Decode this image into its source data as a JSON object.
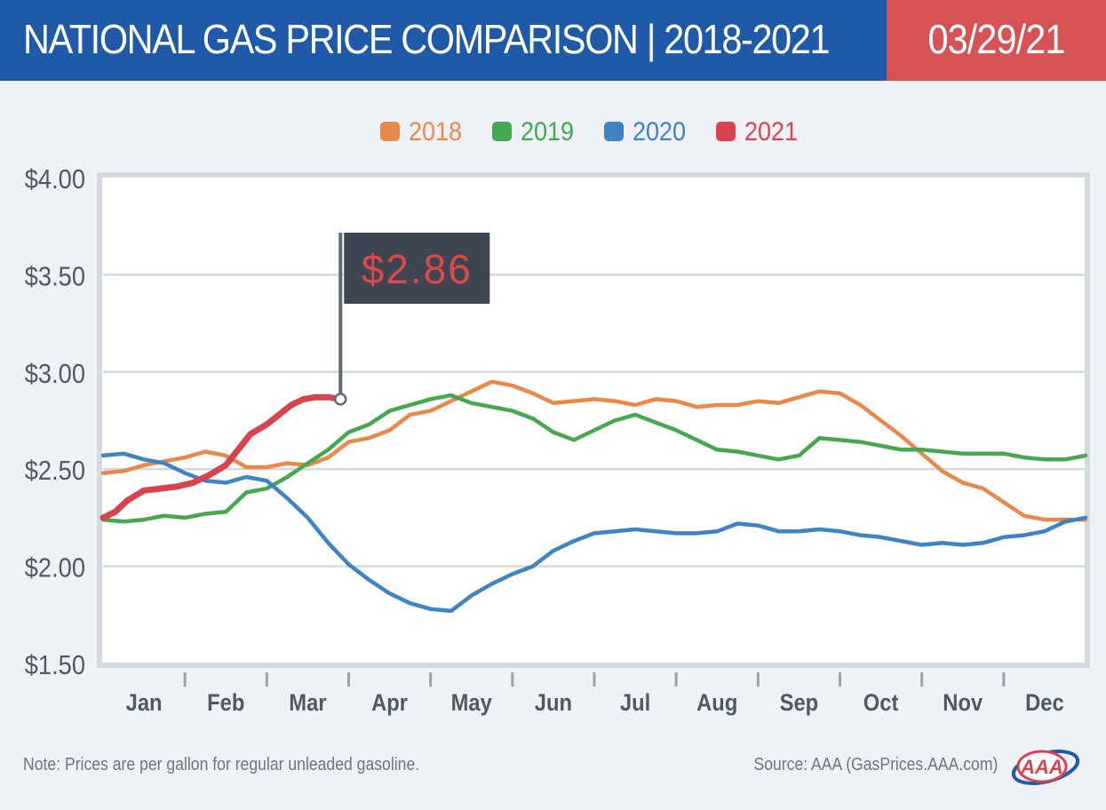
{
  "header": {
    "title": "NATIONAL GAS PRICE COMPARISON | 2018-2021",
    "date": "03/29/21"
  },
  "footer": {
    "note": "Note: Prices are per gallon for regular unleaded gasoline.",
    "source": "Source: AAA (GasPrices.AAA.com)",
    "logo_icon": "aaa-logo-icon",
    "logo_text": "AAA"
  },
  "colors": {
    "header_blue": "#1f5aa8",
    "header_red": "#d75252",
    "2018": "#e8894a",
    "2019": "#45a84f",
    "2020": "#3f83c3",
    "2021": "#d9434d",
    "callout_bg": "#3d4652",
    "callout_text": "#e04848"
  },
  "chart_data": {
    "type": "line",
    "title": "",
    "xlabel": "",
    "ylabel": "",
    "ylim": [
      1.5,
      4.0
    ],
    "xlim": [
      1,
      13
    ],
    "y_ticks": [
      1.5,
      2.0,
      2.5,
      3.0,
      3.5,
      4.0
    ],
    "y_tick_labels": [
      "$1.50",
      "$2.00",
      "$2.50",
      "$3.00",
      "$3.50",
      "$4.00"
    ],
    "categories": [
      "Jan",
      "Feb",
      "Mar",
      "Apr",
      "May",
      "Jun",
      "Jul",
      "Aug",
      "Sep",
      "Oct",
      "Nov",
      "Dec"
    ],
    "grid": true,
    "legend_position": "top-center",
    "annotation": {
      "label": "$2.86",
      "x": 3.9,
      "y": 2.86,
      "series": "2021"
    },
    "series": [
      {
        "name": "2018",
        "color": "#e8894a",
        "x": [
          1.0,
          1.25,
          1.5,
          1.75,
          2.0,
          2.25,
          2.5,
          2.75,
          3.0,
          3.25,
          3.5,
          3.75,
          4.0,
          4.25,
          4.5,
          4.75,
          5.0,
          5.25,
          5.5,
          5.75,
          6.0,
          6.25,
          6.5,
          6.75,
          7.0,
          7.25,
          7.5,
          7.75,
          8.0,
          8.25,
          8.5,
          8.75,
          9.0,
          9.25,
          9.5,
          9.75,
          10.0,
          10.25,
          10.5,
          10.75,
          11.0,
          11.25,
          11.5,
          11.75,
          12.0,
          12.25,
          12.5,
          12.75,
          13.0
        ],
        "y": [
          2.48,
          2.49,
          2.52,
          2.54,
          2.56,
          2.59,
          2.57,
          2.51,
          2.51,
          2.53,
          2.52,
          2.56,
          2.64,
          2.66,
          2.7,
          2.78,
          2.8,
          2.85,
          2.9,
          2.95,
          2.93,
          2.89,
          2.84,
          2.85,
          2.86,
          2.85,
          2.83,
          2.86,
          2.85,
          2.82,
          2.83,
          2.83,
          2.85,
          2.84,
          2.87,
          2.9,
          2.89,
          2.83,
          2.75,
          2.67,
          2.58,
          2.49,
          2.43,
          2.4,
          2.33,
          2.26,
          2.24,
          2.24,
          2.24
        ]
      },
      {
        "name": "2019",
        "color": "#45a84f",
        "x": [
          1.0,
          1.25,
          1.5,
          1.75,
          2.0,
          2.25,
          2.5,
          2.75,
          3.0,
          3.25,
          3.5,
          3.75,
          4.0,
          4.25,
          4.5,
          4.75,
          5.0,
          5.25,
          5.5,
          5.75,
          6.0,
          6.25,
          6.5,
          6.75,
          7.0,
          7.25,
          7.5,
          7.75,
          8.0,
          8.25,
          8.5,
          8.75,
          9.0,
          9.25,
          9.5,
          9.75,
          10.0,
          10.25,
          10.5,
          10.75,
          11.0,
          11.25,
          11.5,
          11.75,
          12.0,
          12.25,
          12.5,
          12.75,
          13.0
        ],
        "y": [
          2.24,
          2.23,
          2.24,
          2.26,
          2.25,
          2.27,
          2.28,
          2.38,
          2.4,
          2.46,
          2.53,
          2.6,
          2.69,
          2.73,
          2.8,
          2.83,
          2.86,
          2.88,
          2.84,
          2.82,
          2.8,
          2.76,
          2.69,
          2.65,
          2.7,
          2.75,
          2.78,
          2.74,
          2.7,
          2.65,
          2.6,
          2.59,
          2.57,
          2.55,
          2.57,
          2.66,
          2.65,
          2.64,
          2.62,
          2.6,
          2.6,
          2.59,
          2.58,
          2.58,
          2.58,
          2.56,
          2.55,
          2.55,
          2.57
        ]
      },
      {
        "name": "2020",
        "color": "#3f83c3",
        "x": [
          1.0,
          1.25,
          1.5,
          1.75,
          2.0,
          2.25,
          2.5,
          2.75,
          3.0,
          3.25,
          3.5,
          3.75,
          4.0,
          4.25,
          4.5,
          4.75,
          5.0,
          5.25,
          5.5,
          5.75,
          6.0,
          6.25,
          6.5,
          6.75,
          7.0,
          7.25,
          7.5,
          7.75,
          8.0,
          8.25,
          8.5,
          8.75,
          9.0,
          9.25,
          9.5,
          9.75,
          10.0,
          10.25,
          10.5,
          10.75,
          11.0,
          11.25,
          11.5,
          11.75,
          12.0,
          12.25,
          12.5,
          12.75,
          13.0
        ],
        "y": [
          2.57,
          2.58,
          2.55,
          2.53,
          2.48,
          2.44,
          2.43,
          2.46,
          2.44,
          2.35,
          2.25,
          2.12,
          2.01,
          1.93,
          1.86,
          1.81,
          1.78,
          1.77,
          1.85,
          1.91,
          1.96,
          2.0,
          2.08,
          2.13,
          2.17,
          2.18,
          2.19,
          2.18,
          2.17,
          2.17,
          2.18,
          2.22,
          2.21,
          2.18,
          2.18,
          2.19,
          2.18,
          2.16,
          2.15,
          2.13,
          2.11,
          2.12,
          2.11,
          2.12,
          2.15,
          2.16,
          2.18,
          2.23,
          2.25
        ]
      },
      {
        "name": "2021",
        "color": "#d9434d",
        "x": [
          1.0,
          1.15,
          1.3,
          1.5,
          1.7,
          1.9,
          2.1,
          2.3,
          2.5,
          2.65,
          2.8,
          3.0,
          3.15,
          3.3,
          3.45,
          3.6,
          3.75,
          3.9
        ],
        "y": [
          2.25,
          2.28,
          2.34,
          2.39,
          2.4,
          2.41,
          2.43,
          2.47,
          2.52,
          2.6,
          2.68,
          2.73,
          2.78,
          2.83,
          2.86,
          2.87,
          2.87,
          2.86
        ]
      }
    ]
  }
}
